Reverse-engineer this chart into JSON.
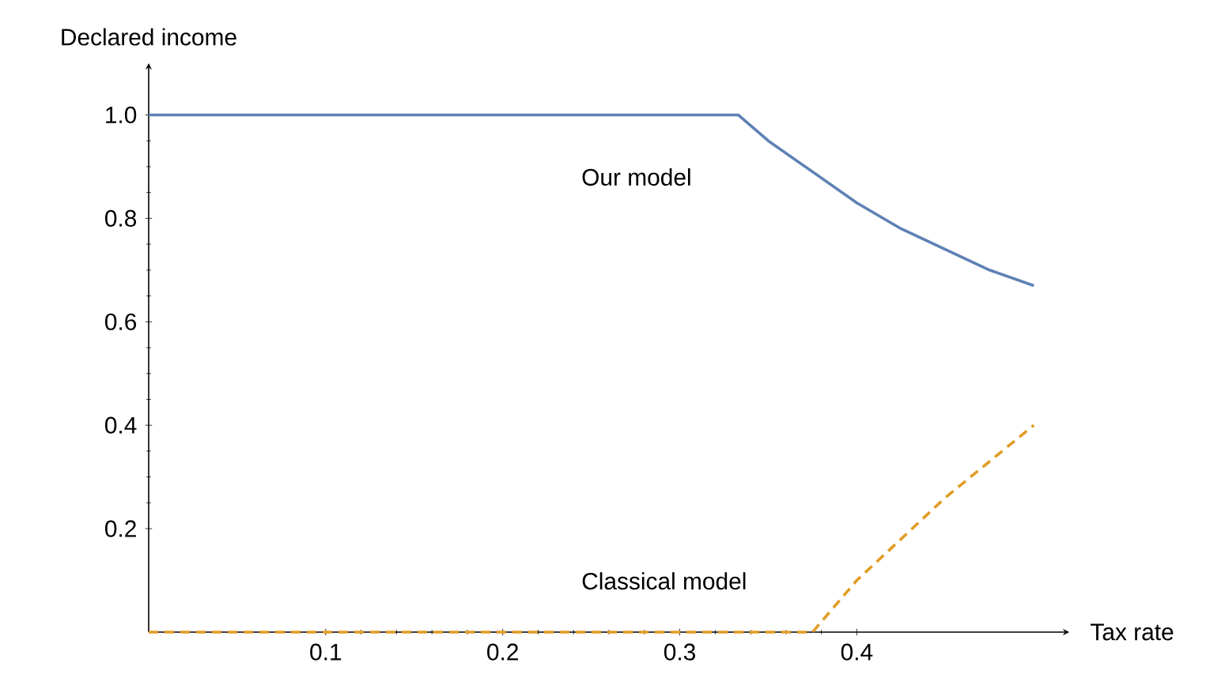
{
  "chart_data": {
    "type": "line",
    "xlabel": "Tax rate",
    "ylabel": "Declared income",
    "xlim": [
      0,
      0.52
    ],
    "ylim": [
      0,
      1.1
    ],
    "xticks": [
      0.1,
      0.2,
      0.3,
      0.4
    ],
    "yticks": [
      0.2,
      0.4,
      0.6,
      0.8,
      {
        "value": 1,
        "label": "1.0"
      }
    ],
    "grid": false,
    "marker": "none",
    "series": [
      {
        "name": "Our model",
        "color": "#5e81b5",
        "line_style": "solid",
        "x": [
          0,
          0.1,
          0.2,
          0.3,
          0.333,
          0.35,
          0.375,
          0.4,
          0.425,
          0.45,
          0.475,
          0.5
        ],
        "values": [
          1,
          1,
          1,
          1,
          1,
          0.95,
          0.89,
          0.83,
          0.78,
          0.74,
          0.7,
          0.67
        ]
      },
      {
        "name": "Classical model",
        "color": "#e19c24",
        "line_style": "dashed",
        "x": [
          0,
          0.1,
          0.2,
          0.3,
          0.375,
          0.4,
          0.425,
          0.45,
          0.475,
          0.5
        ],
        "values": [
          0,
          0,
          0,
          0,
          0,
          0.1,
          0.18,
          0.26,
          0.33,
          0.4
        ]
      }
    ]
  }
}
